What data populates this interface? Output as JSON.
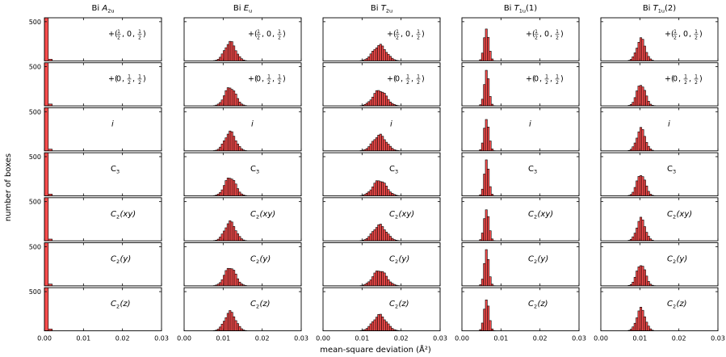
{
  "figure": {
    "ylabel": "number of boxes",
    "xlabel": "mean-square deviation (Å²)",
    "xticks": [
      "0.00",
      "0.01",
      "0.02",
      "0.03"
    ],
    "ytick_label": "500",
    "bar_color": "#f84c4c",
    "edge_color": "#000000"
  },
  "chart_data": {
    "type": "histogram",
    "xlim": [
      0,
      0.03
    ],
    "ylim": [
      0,
      550
    ],
    "yticks": [
      500
    ],
    "columns": [
      {
        "title_base": "Bi ",
        "title_sym": "A",
        "title_sub": "2u",
        "title_suffix": "",
        "center": 0.0006,
        "sigma": 0.00035,
        "peak": 620,
        "bin": 0.001
      },
      {
        "title_base": "Bi ",
        "title_sym": "E",
        "title_sub": "u",
        "title_suffix": "",
        "center": 0.0118,
        "sigma": 0.0014,
        "peak": 240,
        "bin": 0.0005
      },
      {
        "title_base": "Bi ",
        "title_sym": "T",
        "title_sub": "2u",
        "title_suffix": "",
        "center": 0.0145,
        "sigma": 0.0017,
        "peak": 200,
        "bin": 0.0005
      },
      {
        "title_base": "Bi ",
        "title_sym": "T",
        "title_sub": "1u",
        "title_suffix": "(1)",
        "center": 0.0063,
        "sigma": 0.0006,
        "peak": 430,
        "bin": 0.0005
      },
      {
        "title_base": "Bi ",
        "title_sym": "T",
        "title_sub": "1u",
        "title_suffix": "(2)",
        "center": 0.0103,
        "sigma": 0.0011,
        "peak": 280,
        "bin": 0.0005
      }
    ],
    "rows": [
      {
        "label_kind": "translation",
        "label_text": "+(½, 0, ½)",
        "fractions": [
          "1/2",
          "0",
          "1/2"
        ]
      },
      {
        "label_kind": "translation",
        "label_text": "+(0, ½, ½)",
        "fractions": [
          "0",
          "1/2",
          "1/2"
        ]
      },
      {
        "label_kind": "italic",
        "label_text": "i"
      },
      {
        "label_kind": "c3",
        "label_text": "C3",
        "main": "C",
        "sub": "3"
      },
      {
        "label_kind": "c2",
        "label_text": "C2(xy)",
        "main": "C",
        "sub": "2",
        "axis": "xy"
      },
      {
        "label_kind": "c2",
        "label_text": "C2(y)",
        "main": "C",
        "sub": "2",
        "axis": "y"
      },
      {
        "label_kind": "c2",
        "label_text": "C2(z)",
        "main": "C",
        "sub": "2",
        "axis": "z"
      }
    ]
  }
}
